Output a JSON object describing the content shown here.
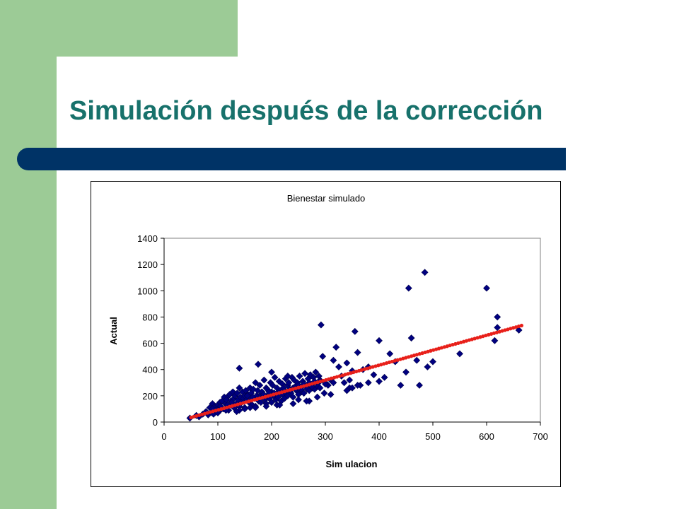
{
  "slide": {
    "title": "Simulación después de la corrección",
    "colors": {
      "accent_green": "#9ccb96",
      "title_teal": "#17716b",
      "bar_navy": "#003366"
    }
  },
  "chart_data": {
    "type": "scatter",
    "title": "Bienestar simulado",
    "xlabel": "Sim ulacion",
    "ylabel": "Actual",
    "xlim": [
      0,
      700
    ],
    "ylim": [
      0,
      1400
    ],
    "xticks": [
      "0",
      "100",
      "200",
      "300",
      "400",
      "500",
      "600",
      "700"
    ],
    "yticks": [
      "0",
      "200",
      "400",
      "600",
      "800",
      "1000",
      "1200",
      "1400"
    ],
    "grid": false,
    "legend": "none",
    "marker_color": "#000080",
    "line_color": "#e8201a",
    "series": [
      {
        "kind": "points",
        "x": [
          48,
          60,
          65,
          72,
          78,
          82,
          85,
          88,
          90,
          92,
          95,
          98,
          100,
          102,
          104,
          106,
          108,
          110,
          112,
          114,
          116,
          118,
          120,
          120,
          122,
          124,
          126,
          128,
          130,
          130,
          132,
          134,
          136,
          138,
          140,
          140,
          142,
          144,
          146,
          148,
          150,
          150,
          152,
          154,
          156,
          158,
          160,
          160,
          162,
          164,
          166,
          168,
          170,
          170,
          172,
          174,
          176,
          178,
          180,
          180,
          182,
          184,
          186,
          188,
          190,
          190,
          192,
          194,
          196,
          198,
          200,
          200,
          202,
          204,
          206,
          208,
          210,
          210,
          212,
          214,
          216,
          218,
          220,
          220,
          222,
          224,
          226,
          228,
          230,
          230,
          232,
          234,
          236,
          238,
          240,
          240,
          242,
          244,
          246,
          248,
          250,
          250,
          252,
          254,
          256,
          258,
          260,
          260,
          262,
          264,
          266,
          268,
          270,
          270,
          272,
          274,
          276,
          278,
          280,
          280,
          282,
          284,
          286,
          288,
          290,
          290,
          292,
          295,
          298,
          300,
          305,
          310,
          315,
          320,
          325,
          330,
          335,
          340,
          345,
          350,
          355,
          360,
          365,
          370,
          380,
          390,
          400,
          410,
          420,
          430,
          440,
          450,
          455,
          460,
          470,
          475,
          490,
          500,
          550,
          600,
          615,
          620,
          620,
          660,
          485,
          290,
          140,
          175,
          200,
          230,
          90,
          105,
          140,
          160,
          210,
          240,
          270,
          100,
          115,
          135,
          150,
          170,
          190,
          215,
          250,
          265,
          285,
          310,
          340,
          350,
          360,
          380,
          400,
          205,
          225,
          255,
          275,
          300,
          315,
          345,
          155,
          165,
          185,
          195,
          235,
          245
        ],
        "y": [
          30,
          50,
          40,
          60,
          80,
          55,
          110,
          75,
          140,
          60,
          120,
          95,
          130,
          80,
          150,
          115,
          160,
          100,
          190,
          140,
          170,
          130,
          200,
          90,
          210,
          160,
          150,
          230,
          110,
          180,
          200,
          140,
          220,
          170,
          260,
          120,
          190,
          150,
          230,
          180,
          200,
          110,
          240,
          170,
          210,
          150,
          260,
          190,
          220,
          130,
          250,
          180,
          300,
          120,
          200,
          240,
          160,
          280,
          210,
          150,
          230,
          190,
          320,
          170,
          260,
          140,
          250,
          210,
          180,
          300,
          230,
          150,
          280,
          200,
          340,
          170,
          260,
          220,
          190,
          310,
          240,
          160,
          290,
          210,
          260,
          180,
          330,
          230,
          280,
          200,
          300,
          250,
          220,
          340,
          260,
          190,
          320,
          270,
          240,
          300,
          280,
          210,
          350,
          260,
          230,
          310,
          290,
          220,
          370,
          270,
          250,
          330,
          300,
          240,
          360,
          280,
          260,
          340,
          310,
          250,
          380,
          290,
          270,
          350,
          320,
          260,
          740,
          500,
          220,
          300,
          280,
          320,
          470,
          570,
          420,
          350,
          300,
          450,
          260,
          390,
          690,
          530,
          280,
          400,
          420,
          360,
          620,
          340,
          520,
          460,
          280,
          380,
          1020,
          640,
          470,
          280,
          420,
          460,
          520,
          1020,
          620,
          800,
          720,
          700,
          1140,
          310,
          410,
          440,
          380,
          350,
          100,
          120,
          90,
          110,
          130,
          140,
          160,
          70,
          90,
          80,
          100,
          110,
          120,
          130,
          170,
          160,
          190,
          210,
          240,
          260,
          280,
          300,
          310,
          220,
          230,
          250,
          270,
          290,
          300,
          320,
          200,
          190,
          210,
          230,
          240,
          250
        ]
      },
      {
        "kind": "line",
        "name": "",
        "x": [
          50,
          665
        ],
        "y": [
          35,
          735
        ]
      }
    ]
  }
}
